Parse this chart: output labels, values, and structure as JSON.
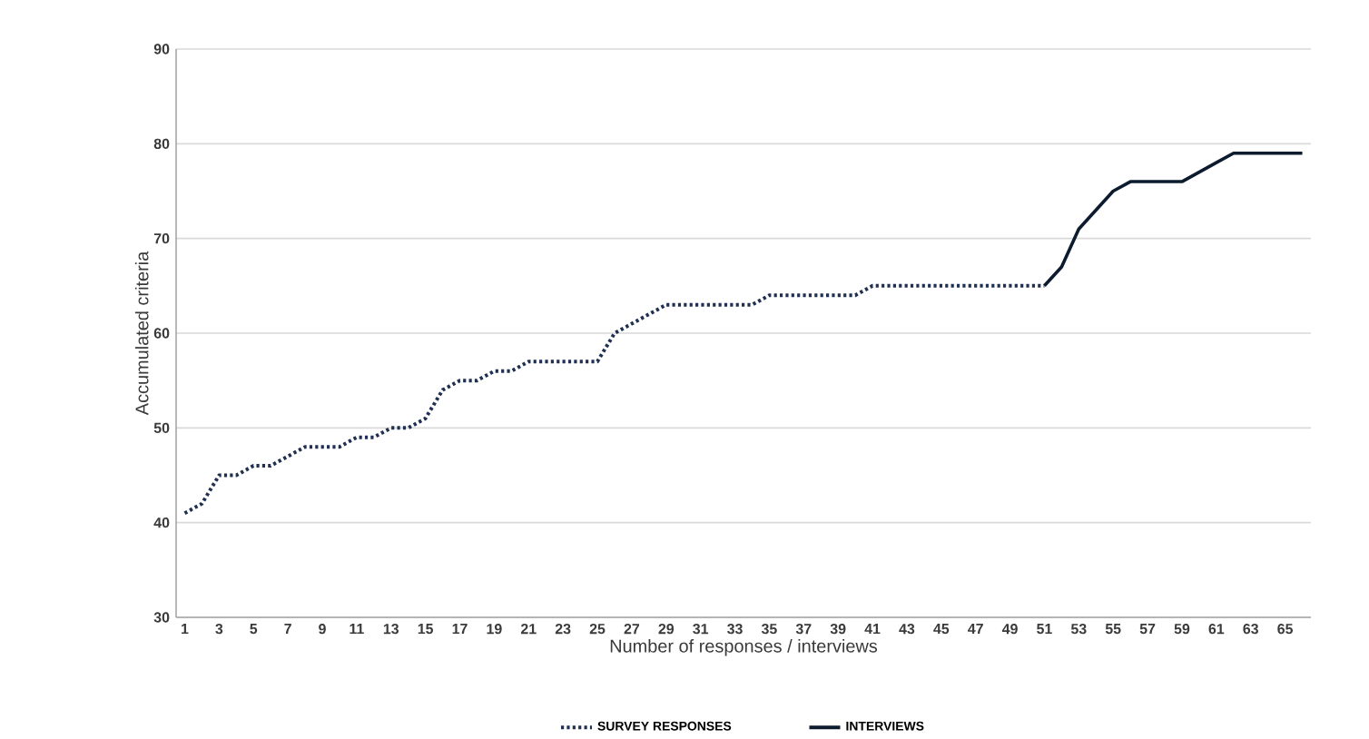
{
  "chart_data": {
    "type": "line",
    "xlabel": "Number of responses / interviews",
    "ylabel": "Accumulated criteria",
    "categories": [
      "1",
      null,
      "3",
      null,
      "5",
      null,
      "7",
      null,
      "9",
      null,
      "11",
      null,
      "13",
      null,
      "15",
      null,
      "17",
      null,
      "19",
      null,
      "21",
      null,
      "23",
      null,
      "25",
      null,
      "27",
      null,
      "29",
      null,
      "31",
      null,
      "33",
      null,
      "35",
      null,
      "37",
      null,
      "39",
      null,
      "41",
      null,
      "43",
      null,
      "45",
      null,
      "47",
      null,
      "49",
      null,
      "51",
      null,
      "53",
      null,
      "55",
      null,
      "57",
      null,
      "59",
      null,
      "61",
      null,
      "63",
      null,
      "65",
      null
    ],
    "series": [
      {
        "name": "SURVEY RESPONSES",
        "color": "#1f3050",
        "line_style": "dotted",
        "values": [
          41,
          42,
          45,
          45,
          46,
          46,
          47,
          48,
          48,
          48,
          49,
          49,
          50,
          50,
          51,
          54,
          55,
          55,
          56,
          56,
          57,
          57,
          57,
          57,
          57,
          60,
          61,
          62,
          63,
          63,
          63,
          63,
          63,
          63,
          64,
          64,
          64,
          64,
          64,
          64,
          65,
          65,
          65,
          65,
          65,
          65,
          65,
          65,
          65,
          65,
          65,
          null,
          null,
          null,
          null,
          null,
          null,
          null,
          null,
          null,
          null,
          null,
          null,
          null,
          null,
          null
        ]
      },
      {
        "name": "INTERVIEWS",
        "color": "#0d1b2e",
        "line_style": "solid",
        "values": [
          null,
          null,
          null,
          null,
          null,
          null,
          null,
          null,
          null,
          null,
          null,
          null,
          null,
          null,
          null,
          null,
          null,
          null,
          null,
          null,
          null,
          null,
          null,
          null,
          null,
          null,
          null,
          null,
          null,
          null,
          null,
          null,
          null,
          null,
          null,
          null,
          null,
          null,
          null,
          null,
          null,
          null,
          null,
          null,
          null,
          null,
          null,
          null,
          null,
          null,
          65,
          67,
          71,
          73,
          75,
          76,
          76,
          76,
          76,
          77,
          78,
          79,
          79,
          79,
          79,
          79
        ]
      }
    ],
    "ylim": [
      30,
      90
    ],
    "yticks": [
      30,
      40,
      50,
      60,
      70,
      80,
      90
    ],
    "grid": "y",
    "legend": "bottom",
    "marker": "none"
  }
}
